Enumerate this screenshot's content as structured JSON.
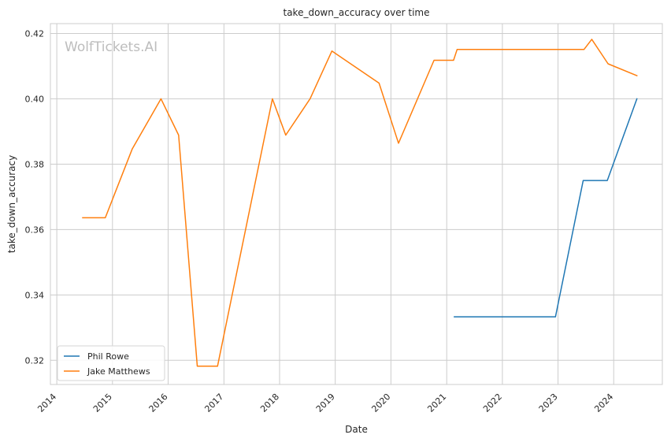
{
  "chart_data": {
    "type": "line",
    "title": "take_down_accuracy over time",
    "xlabel": "Date",
    "ylabel": "take_down_accuracy",
    "watermark": "WolfTickets.AI",
    "grid": true,
    "legend_position": "bottom-left",
    "x_ticks": [
      "2014",
      "2015",
      "2016",
      "2017",
      "2018",
      "2019",
      "2020",
      "2021",
      "2022",
      "2023",
      "2024"
    ],
    "y_ticks": [
      0.32,
      0.34,
      0.36,
      0.38,
      0.4,
      0.42
    ],
    "xlim": [
      "2013-11-20",
      "2024-11-15"
    ],
    "ylim": [
      0.3126,
      0.423
    ],
    "series": [
      {
        "name": "Phil Rowe",
        "color": "#1f77b4",
        "points": [
          [
            "2021-02-20",
            0.3333
          ],
          [
            "2022-12-15",
            0.3333
          ],
          [
            "2023-06-15",
            0.375
          ],
          [
            "2023-11-20",
            0.375
          ],
          [
            "2024-06-01",
            0.4
          ]
        ]
      },
      {
        "name": "Jake Matthews",
        "color": "#ff7f0e",
        "points": [
          [
            "2014-06-20",
            0.3636
          ],
          [
            "2014-11-15",
            0.3636
          ],
          [
            "2015-05-10",
            0.3846
          ],
          [
            "2015-11-15",
            0.4
          ],
          [
            "2016-03-10",
            0.3889
          ],
          [
            "2016-07-10",
            0.3182
          ],
          [
            "2016-11-20",
            0.3182
          ],
          [
            "2017-11-15",
            0.4
          ],
          [
            "2018-02-10",
            0.3889
          ],
          [
            "2018-07-20",
            0.4
          ],
          [
            "2018-12-10",
            0.4146
          ],
          [
            "2019-10-15",
            0.4048
          ],
          [
            "2020-02-20",
            0.3864
          ],
          [
            "2020-10-10",
            0.4118
          ],
          [
            "2021-02-15",
            0.4118
          ],
          [
            "2021-03-10",
            0.4151
          ],
          [
            "2023-06-20",
            0.4151
          ],
          [
            "2023-08-10",
            0.4182
          ],
          [
            "2023-11-25",
            0.4107
          ],
          [
            "2024-06-01",
            0.4071
          ]
        ]
      }
    ]
  }
}
